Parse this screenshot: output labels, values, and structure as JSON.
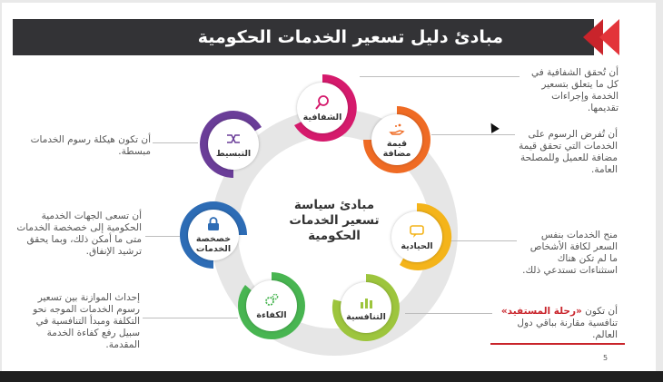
{
  "header": {
    "title": "مبادئ دليل تسعير الخدمات الحكومية"
  },
  "center": {
    "title": "مبادئ سياسة تسعير الخدمات الحكومية"
  },
  "nodes": [
    {
      "key": "transparency",
      "label": "الشفافية",
      "color": "#d51a6c",
      "icon": "magnifier-icon"
    },
    {
      "key": "value-added",
      "label": "قيمة مضافة",
      "color": "#ef6b24",
      "icon": "hand-coins-icon"
    },
    {
      "key": "neutrality",
      "label": "الحيادية",
      "color": "#f4b41a",
      "icon": "chat-icon"
    },
    {
      "key": "competitiveness",
      "label": "التنافسية",
      "color": "#9dc53d",
      "icon": "bar-chart-icon"
    },
    {
      "key": "efficiency",
      "label": "الكفاءة",
      "color": "#48b551",
      "icon": "gears-icon"
    },
    {
      "key": "privatization",
      "label": "خصخصة الخدمات",
      "color": "#2d6cb5",
      "icon": "lock-icon"
    },
    {
      "key": "simplification",
      "label": "التبسيط",
      "color": "#6a3d98",
      "icon": "shuffle-icon"
    }
  ],
  "descriptions": {
    "transparency": "أن تُحقق الشفافية في كل ما يتعلق بتسعير الخدمة وإجراءات تقديمها.",
    "value_added": "أن تُفرض الرسوم على الخدمات التي تحقق قيمة مضافة للعميل وللمصلحة العامة.",
    "neutrality": "منح الخدمات بنفس السعر لكافة الأشخاص ما لم تكن هناك استثناءات تستدعي ذلك.",
    "competitiveness_pre": "أن تكون ",
    "competitiveness_hl": "«رحلة المستفيد»",
    "competitiveness_post": " تنافسية مقارنة بباقي دول العالم.",
    "efficiency": "إحداث الموازنة بين تسعير رسوم الخدمات الموجه نحو التكلفة ومبدأ التنافسية في سبيل رفع كفاءة الخدمة المقدمة.",
    "privatization": "أن تسعى الجهات الخدمية الحكومية إلى خصخصة الخدمات متى ما أمكن ذلك، وبما يحقق ترشيد الإنفاق.",
    "simplification": "أن تكون هيكلة رسوم الخدمات مبسطة."
  },
  "footer": {
    "page_number": "5"
  }
}
